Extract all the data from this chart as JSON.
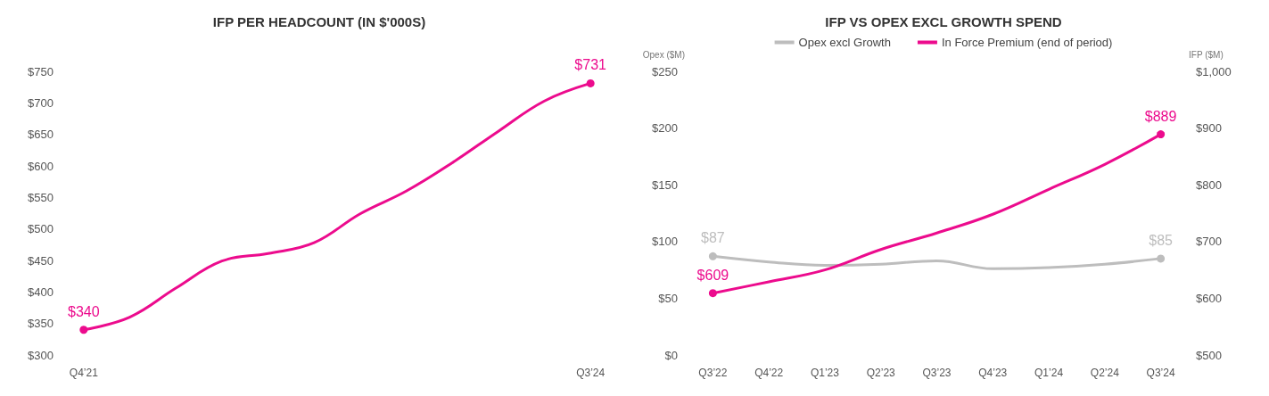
{
  "chart_data": [
    {
      "type": "line",
      "title": "IFP PER HEADCOUNT (IN $'000S)",
      "categories": [
        "Q4’21",
        null,
        null,
        null,
        null,
        null,
        null,
        null,
        null,
        null,
        null,
        "Q3’24"
      ],
      "series": [
        {
          "color": "#ec0b8d",
          "values": [
            340,
            360,
            406,
            449,
            461,
            478,
            524,
            560,
            605,
            655,
            703,
            731
          ],
          "value_labels": [
            "$340",
            null,
            null,
            null,
            null,
            null,
            null,
            null,
            null,
            null,
            null,
            "$731"
          ]
        }
      ],
      "ylim": [
        300,
        750
      ],
      "yticks": [
        {
          "value": 300,
          "label": "$300"
        },
        {
          "value": 350,
          "label": "$350"
        },
        {
          "value": 400,
          "label": "$400"
        },
        {
          "value": 450,
          "label": "$450"
        },
        {
          "value": 500,
          "label": "$500"
        },
        {
          "value": 550,
          "label": "$550"
        },
        {
          "value": 600,
          "label": "$600"
        },
        {
          "value": 650,
          "label": "$650"
        },
        {
          "value": 700,
          "label": "$700"
        },
        {
          "value": 750,
          "label": "$750"
        }
      ],
      "legend": false,
      "grid": false
    },
    {
      "type": "line",
      "title": "IFP VS OPEX EXCL GROWTH SPEND",
      "ylabel": "Opex ($M)",
      "y2label": "IFP ($M)",
      "categories": [
        "Q3’22",
        "Q4’22",
        "Q1’23",
        "Q2’23",
        "Q3’23",
        "Q4’23",
        "Q1’24",
        "Q2’24",
        "Q3’24"
      ],
      "series": [
        {
          "name": "Opex excl Growth",
          "color": "#bdbdbd",
          "values": [
            87,
            82,
            79,
            80,
            83,
            76,
            77,
            80,
            85
          ],
          "value_labels": [
            "$87",
            null,
            null,
            null,
            null,
            null,
            null,
            null,
            "$85"
          ]
        },
        {
          "name": "In Force Premium (end of period)",
          "color": "#ec0b8d",
          "axis": "y2",
          "values": [
            609,
            629,
            650,
            686,
            715,
            748,
            792,
            836,
            889
          ],
          "value_labels": [
            "$609",
            null,
            null,
            null,
            null,
            null,
            null,
            null,
            "$889"
          ]
        }
      ],
      "ylim": [
        0,
        250
      ],
      "yticks": [
        {
          "value": 0,
          "label": "$0"
        },
        {
          "value": 50,
          "label": "$50"
        },
        {
          "value": 100,
          "label": "$100"
        },
        {
          "value": 150,
          "label": "$150"
        },
        {
          "value": 200,
          "label": "$200"
        },
        {
          "value": 250,
          "label": "$250"
        }
      ],
      "y2lim": [
        500,
        1000
      ],
      "y2ticks": [
        {
          "value": 500,
          "label": "$500"
        },
        {
          "value": 600,
          "label": "$600"
        },
        {
          "value": 700,
          "label": "$700"
        },
        {
          "value": 800,
          "label": "$800"
        },
        {
          "value": 900,
          "label": "$900"
        },
        {
          "value": 1000,
          "label": "$1,000"
        }
      ],
      "legend": "top",
      "grid": false
    }
  ]
}
